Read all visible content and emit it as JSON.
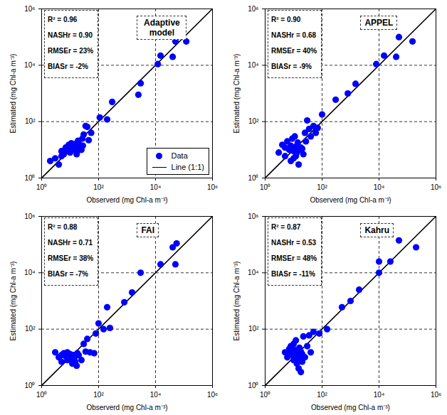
{
  "chart_data": [
    {
      "type": "scatter",
      "title": "Adaptive model",
      "xlabel": "Observerd (mg Chl-a m⁻³)",
      "ylabel": "Estimated (mg Chl-a m⁻³)",
      "annotations": [
        "R² = 0.96",
        "NASHr = 0.90",
        "RMSEr = 23%",
        "BIASr = -2%"
      ],
      "log": true,
      "legend": "bottom-right",
      "reference_lines": [
        100,
        10000
      ],
      "xlim": [
        1,
        1000000
      ],
      "ylim": [
        1,
        1000000
      ],
      "xticks": [
        {
          "value": 1,
          "label": "10⁰"
        },
        {
          "value": 100,
          "label": "10²"
        },
        {
          "value": 10000,
          "label": "10⁴"
        },
        {
          "value": 1000000,
          "label": "10⁶"
        }
      ],
      "yticks": [
        {
          "value": 1,
          "label": "10⁰"
        },
        {
          "value": 100,
          "label": "10²"
        },
        {
          "value": 10000,
          "label": "10⁴"
        },
        {
          "value": 1000000,
          "label": "10⁶"
        }
      ],
      "series": [
        {
          "name": "Data",
          "type": "scatter",
          "color": "#0000ff",
          "marker": "circle",
          "x": [
            2,
            3,
            4,
            5,
            5,
            6,
            7,
            8,
            9,
            10,
            10,
            11,
            12,
            13,
            14,
            15,
            16,
            17,
            18,
            19,
            20,
            22,
            25,
            27,
            28,
            30,
            35,
            40,
            45,
            55,
            110,
            200,
            300,
            2500,
            3000,
            12000,
            15000,
            40000,
            50000,
            120000
          ],
          "values": [
            4,
            5,
            3,
            6,
            9,
            7,
            12,
            9,
            15,
            12,
            8,
            17,
            10,
            14,
            16,
            11,
            13,
            7,
            9,
            21,
            17,
            12,
            10,
            25,
            14,
            35,
            70,
            65,
            22,
            40,
            140,
            120,
            500,
            900,
            2300,
            11000,
            22000,
            20000,
            70000,
            70000
          ]
        },
        {
          "name": "Line (1:1)",
          "type": "line",
          "color": "#000000",
          "line_style": "solid",
          "x": [
            1,
            1000000
          ],
          "values": [
            1,
            1000000
          ]
        }
      ]
    },
    {
      "type": "scatter",
      "title": "APPEL",
      "xlabel": "Observerd (mg Chl-a m⁻³)",
      "ylabel": "Estimated (mg Chl-a m⁻³)",
      "annotations": [
        "R² = 0.90",
        "NASHr = 0.68",
        "RMSEr = 40%",
        "BIASr = -9%"
      ],
      "log": true,
      "reference_lines": [
        100,
        10000
      ],
      "xlim": [
        1,
        1000000
      ],
      "ylim": [
        1,
        1000000
      ],
      "xticks": [
        {
          "value": 1,
          "label": "10⁰"
        },
        {
          "value": 100,
          "label": "10²"
        },
        {
          "value": 10000,
          "label": "10⁴"
        },
        {
          "value": 1000000,
          "label": "10⁶"
        }
      ],
      "yticks": [
        {
          "value": 1,
          "label": "10⁰"
        },
        {
          "value": 100,
          "label": "10²"
        },
        {
          "value": 10000,
          "label": "10⁴"
        },
        {
          "value": 1000000,
          "label": "10⁶"
        }
      ],
      "series": [
        {
          "name": "Data",
          "type": "scatter",
          "color": "#0000ff",
          "marker": "circle",
          "x": [
            3,
            4,
            5,
            5,
            6,
            7,
            8,
            8,
            9,
            10,
            10,
            11,
            12,
            12,
            13,
            14,
            15,
            16,
            18,
            20,
            22,
            25,
            27,
            30,
            35,
            40,
            50,
            60,
            70,
            100,
            300,
            800,
            1500,
            8000,
            15000,
            40000,
            50000,
            150000
          ],
          "values": [
            8,
            15,
            12,
            6,
            20,
            10,
            14,
            4,
            25,
            9,
            5,
            30,
            13,
            6,
            8,
            18,
            3,
            10,
            12,
            11,
            7,
            40,
            20,
            110,
            55,
            30,
            70,
            40,
            60,
            180,
            600,
            1000,
            2200,
            11000,
            22000,
            20000,
            100000,
            70000
          ]
        },
        {
          "name": "Line (1:1)",
          "type": "line",
          "color": "#000000",
          "line_style": "solid",
          "x": [
            1,
            1000000
          ],
          "values": [
            1,
            1000000
          ]
        }
      ]
    },
    {
      "type": "scatter",
      "title": "FAI",
      "xlabel": "Observerd (mg Chl-a m⁻³)",
      "ylabel": "Estimated (mg Chl-a m⁻³)",
      "annotations": [
        "R² = 0.88",
        "NASHr = 0.71",
        "RMSEr = 38%",
        "BIASr = -7%"
      ],
      "log": true,
      "reference_lines": [
        100,
        10000
      ],
      "xlim": [
        1,
        1000000
      ],
      "ylim": [
        1,
        1000000
      ],
      "xticks": [
        {
          "value": 1,
          "label": "10⁰"
        },
        {
          "value": 100,
          "label": "10²"
        },
        {
          "value": 10000,
          "label": "10⁴"
        },
        {
          "value": 1000000,
          "label": "10⁶"
        }
      ],
      "yticks": [
        {
          "value": 1,
          "label": "10⁰"
        },
        {
          "value": 100,
          "label": "10²"
        },
        {
          "value": 10000,
          "label": "10⁴"
        },
        {
          "value": 1000000,
          "label": "10⁶"
        }
      ],
      "series": [
        {
          "name": "Data",
          "type": "scatter",
          "color": "#0000ff",
          "marker": "circle",
          "x": [
            3,
            4,
            5,
            5,
            6,
            7,
            8,
            8,
            9,
            10,
            11,
            12,
            13,
            14,
            15,
            17,
            18,
            20,
            25,
            30,
            35,
            40,
            50,
            70,
            80,
            100,
            150,
            200,
            250,
            800,
            1500,
            3000,
            15000,
            40000,
            50000,
            55000
          ],
          "values": [
            15,
            10,
            12,
            7,
            14,
            11,
            8,
            15,
            10,
            13,
            9,
            6,
            12,
            9,
            7,
            5,
            14,
            12,
            8,
            30,
            16,
            45,
            15,
            14,
            70,
            160,
            100,
            600,
            110,
            900,
            2000,
            10000,
            20000,
            80000,
            20000,
            110000
          ]
        },
        {
          "name": "Line (1:1)",
          "type": "line",
          "color": "#000000",
          "line_style": "solid",
          "x": [
            1,
            1000000
          ],
          "values": [
            1,
            1000000
          ]
        }
      ]
    },
    {
      "type": "scatter",
      "title": "Kahru",
      "xlabel": "Observed (mg Chl-a m⁻³)",
      "ylabel": "Estimated (mg Chl-a m⁻³)",
      "annotations": [
        "R² = 0.87",
        "NASHr = 0.53",
        "RMSEr = 48%",
        "BIASr = -11%"
      ],
      "log": true,
      "reference_lines": [
        100,
        10000
      ],
      "xlim": [
        1,
        1000000
      ],
      "ylim": [
        1,
        1000000
      ],
      "xticks": [
        {
          "value": 1,
          "label": "10⁰"
        },
        {
          "value": 100,
          "label": "10²"
        },
        {
          "value": 10000,
          "label": "10⁴"
        },
        {
          "value": 1000000,
          "label": "10⁶"
        }
      ],
      "yticks": [
        {
          "value": 1,
          "label": "10⁰"
        },
        {
          "value": 100,
          "label": "10²"
        },
        {
          "value": 10000,
          "label": "10⁴"
        },
        {
          "value": 1000000,
          "label": "10⁶"
        }
      ],
      "series": [
        {
          "name": "Data",
          "type": "scatter",
          "color": "#0000ff",
          "marker": "circle",
          "x": [
            5,
            6,
            7,
            8,
            8,
            9,
            10,
            10,
            11,
            12,
            12,
            13,
            14,
            15,
            15,
            16,
            17,
            18,
            18,
            20,
            20,
            22,
            25,
            30,
            35,
            40,
            50,
            80,
            150,
            500,
            1000,
            2000,
            10000,
            10000,
            25000,
            50000,
            200000
          ],
          "values": [
            15,
            10,
            20,
            14,
            25,
            12,
            8,
            30,
            18,
            10,
            40,
            6,
            14,
            9,
            4,
            22,
            11,
            16,
            3,
            13,
            7,
            55,
            10,
            25,
            60,
            15,
            80,
            70,
            100,
            600,
            1000,
            2500,
            10000,
            25000,
            25000,
            140000,
            80000
          ]
        },
        {
          "name": "Line (1:1)",
          "type": "line",
          "color": "#000000",
          "line_style": "solid",
          "x": [
            1,
            1000000
          ],
          "values": [
            1,
            1000000
          ]
        }
      ]
    }
  ]
}
